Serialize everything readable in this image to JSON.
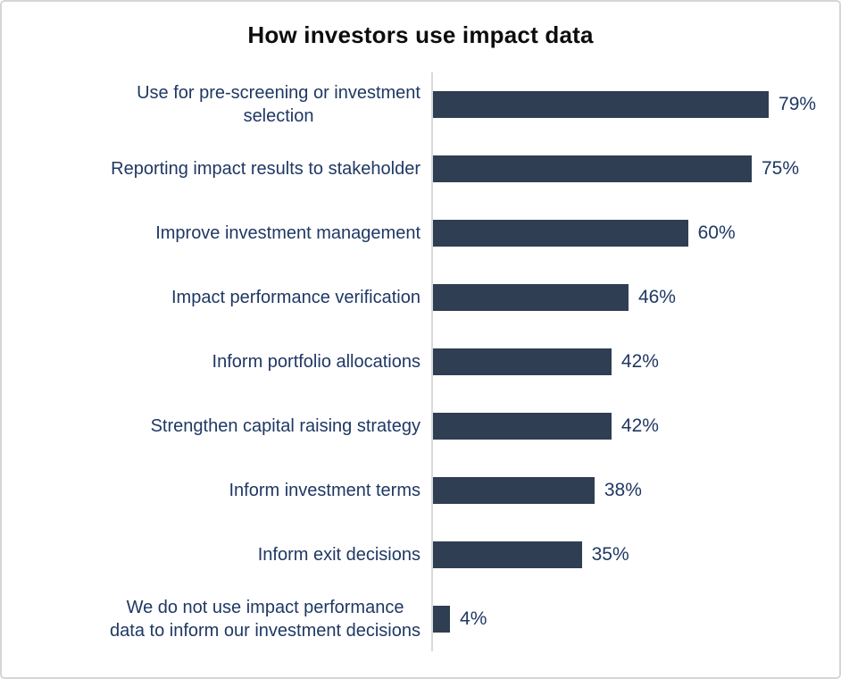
{
  "title": "How investors use impact data",
  "chart_data": {
    "type": "bar",
    "orientation": "horizontal",
    "title": "How investors use impact data",
    "categories": [
      "Use for pre-screening or investment\nselection",
      "Reporting impact results to stakeholder",
      "Improve investment management",
      "Impact performance verification",
      "Inform portfolio allocations",
      "Strengthen capital raising strategy",
      "Inform investment terms",
      "Inform exit decisions",
      "We do not use impact performance\ndata to inform our investment decisions"
    ],
    "values": [
      79,
      75,
      60,
      46,
      42,
      42,
      38,
      35,
      4
    ],
    "value_labels": [
      "79%",
      "75%",
      "60%",
      "46%",
      "42%",
      "42%",
      "38%",
      "35%",
      "4%"
    ],
    "xlabel": "",
    "ylabel": "",
    "xlim": [
      0,
      100
    ],
    "grid": false,
    "legend": false,
    "value_label_position": "end-of-bar",
    "bar_color": "#2f3e52",
    "text_color": "#1f3864",
    "title_color": "#0d0d0d",
    "axis_line_color": "#d9d9d9"
  }
}
